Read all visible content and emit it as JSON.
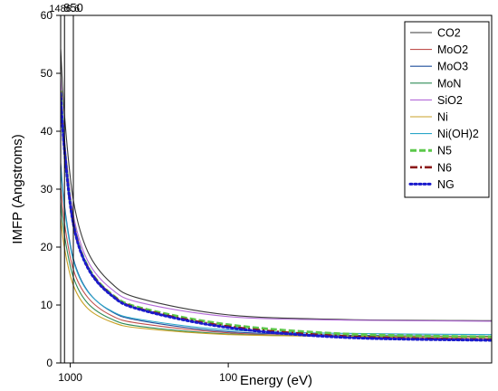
{
  "chart_data": {
    "type": "line",
    "xlabel": "Energy (eV)",
    "ylabel": "IMFP (Angstroms)",
    "x_scale": "reciprocal",
    "xlim": [
      2200,
      40
    ],
    "ylim": [
      0,
      60
    ],
    "x_ticks": [
      1000,
      100
    ],
    "x_tick_labels": [
      "1000",
      "100"
    ],
    "y_ticks": [
      0,
      10,
      20,
      30,
      40,
      50,
      60
    ],
    "y_tick_labels": [
      "0",
      "10",
      "20",
      "30",
      "40",
      "50",
      "60"
    ],
    "grid": false,
    "legend_position": "top-right",
    "reference_lines": [
      {
        "x": 1486.6,
        "label": "1486.6"
      },
      {
        "x": 850,
        "label": "850"
      }
    ],
    "x": [
      2200,
      1486.6,
      850,
      500,
      300,
      200,
      100,
      60,
      40
    ],
    "series": [
      {
        "name": "CO2",
        "color": "#3a3a3a",
        "dash": "solid",
        "values": [
          54.2,
          42.8,
          28.1,
          19.2,
          13.8,
          11.1,
          8.3,
          7.5,
          7.3
        ]
      },
      {
        "name": "MoO2",
        "color": "#c0504d",
        "dash": "solid",
        "values": [
          30.5,
          24.1,
          16.1,
          11.3,
          8.2,
          6.8,
          5.2,
          4.5,
          4.2
        ]
      },
      {
        "name": "MoO3",
        "color": "#1f4e9b",
        "dash": "solid",
        "values": [
          34.5,
          27.2,
          18.0,
          12.4,
          8.9,
          7.3,
          5.4,
          4.8,
          4.6
        ]
      },
      {
        "name": "MoN",
        "color": "#2e8b57",
        "dash": "solid",
        "values": [
          27.8,
          22.0,
          14.8,
          10.3,
          7.6,
          6.3,
          5.0,
          4.6,
          4.5
        ]
      },
      {
        "name": "SiO2",
        "color": "#b36ad8",
        "dash": "solid",
        "values": [
          49.2,
          38.8,
          25.6,
          17.6,
          12.8,
          10.4,
          8.0,
          7.4,
          7.2
        ]
      },
      {
        "name": "Ni",
        "color": "#c9a227",
        "dash": "solid",
        "values": [
          25.0,
          19.8,
          13.4,
          9.4,
          7.1,
          6.0,
          4.9,
          4.6,
          4.5
        ]
      },
      {
        "name": "Ni(OH)2",
        "color": "#2aa7c9",
        "dash": "solid",
        "values": [
          33.8,
          26.7,
          17.7,
          12.3,
          9.0,
          7.5,
          5.7,
          5.1,
          4.9
        ]
      },
      {
        "name": "N5",
        "color": "#5cc84a",
        "dash": "dash",
        "values": [
          47.0,
          37.0,
          24.2,
          16.6,
          11.9,
          9.5,
          6.6,
          5.0,
          4.5
        ]
      },
      {
        "name": "N6",
        "color": "#8b1a1a",
        "dash": "dashdot",
        "values": [
          46.8,
          36.9,
          24.1,
          16.5,
          11.8,
          9.3,
          6.3,
          4.6,
          4.0
        ]
      },
      {
        "name": "NG",
        "color": "#1a1acc",
        "dash": "dot",
        "values": [
          46.5,
          36.7,
          24.0,
          16.4,
          11.7,
          9.2,
          6.1,
          4.4,
          3.9
        ]
      }
    ]
  }
}
